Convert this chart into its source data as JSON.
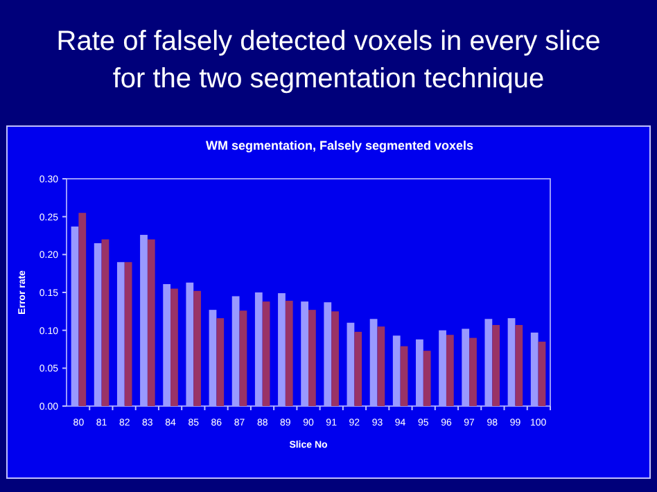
{
  "chart_data": {
    "type": "bar",
    "title": "Rate of falsely detected voxels in every slice for the two segmentation technique",
    "subtitle": "WM segmentation, Falsely segmented voxels",
    "xlabel": "Slice No",
    "ylabel": "Error rate",
    "categories": [
      "80",
      "81",
      "82",
      "83",
      "84",
      "85",
      "86",
      "87",
      "88",
      "89",
      "90",
      "91",
      "92",
      "93",
      "94",
      "95",
      "96",
      "97",
      "98",
      "99",
      "100"
    ],
    "series": [
      {
        "color": "#9999ff",
        "values": [
          0.237,
          0.215,
          0.19,
          0.226,
          0.161,
          0.163,
          0.127,
          0.145,
          0.15,
          0.149,
          0.138,
          0.137,
          0.11,
          0.115,
          0.093,
          0.088,
          0.1,
          0.102,
          0.115,
          0.116,
          0.097
        ]
      },
      {
        "color": "#993366",
        "values": [
          0.255,
          0.22,
          0.19,
          0.22,
          0.155,
          0.152,
          0.116,
          0.126,
          0.138,
          0.139,
          0.127,
          0.125,
          0.098,
          0.105,
          0.079,
          0.073,
          0.094,
          0.09,
          0.107,
          0.107,
          0.085
        ]
      }
    ],
    "ylim": [
      0,
      0.3
    ],
    "yticks": [
      {
        "value": 0,
        "label": "0.00"
      },
      {
        "value": 0.05,
        "label": "0.05"
      },
      {
        "value": 0.1,
        "label": "0.10"
      },
      {
        "value": 0.15,
        "label": "0.15"
      },
      {
        "value": 0.2,
        "label": "0.20"
      },
      {
        "value": 0.25,
        "label": "0.25"
      },
      {
        "value": 0.3,
        "label": "0.30"
      }
    ],
    "grid": false
  }
}
